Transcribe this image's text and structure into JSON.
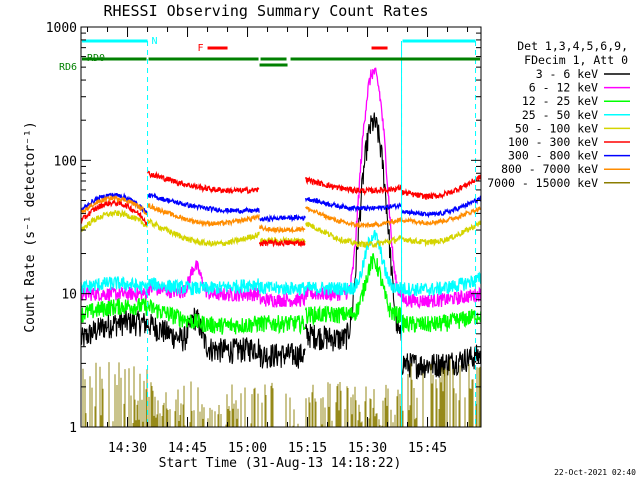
{
  "chart_data": {
    "type": "line",
    "title": "RHESSI Observing Summary Count Rates",
    "xlabel": "Start Time (31-Aug-13 14:18:22)",
    "ylabel": "Count Rate (s⁻¹ detector⁻¹)",
    "yscale": "log",
    "ylim": [
      1,
      1000
    ],
    "xlim": [
      "14:18:22",
      "15:58:22"
    ],
    "xticks": [
      "14:30",
      "14:45",
      "15:00",
      "15:15",
      "15:30",
      "15:45"
    ],
    "yticks": [
      "1",
      "10",
      "100",
      "1000"
    ],
    "grid": false,
    "legend_position": "right",
    "legend_header": [
      "Det 1,3,4,5,6,9,",
      "FDecim 1, Att 0"
    ],
    "series": [
      {
        "name": "3 - 6 keV",
        "color": "#000000"
      },
      {
        "name": "6 - 12 keV",
        "color": "#ff00ff"
      },
      {
        "name": "12 - 25 keV",
        "color": "#00ff00"
      },
      {
        "name": "25 - 50 keV",
        "color": "#00ffff"
      },
      {
        "name": "50 - 100 keV",
        "color": "#d4d400"
      },
      {
        "name": "100 - 300 keV",
        "color": "#ff0000"
      },
      {
        "name": "300 - 800 keV",
        "color": "#0000ff"
      },
      {
        "name": "800 - 7000 keV",
        "color": "#ff8c00"
      },
      {
        "name": "7000 - 15000 keV",
        "color": "#8b7d00"
      }
    ],
    "annotations": {
      "night_label": "N",
      "flare_label": "F",
      "rd0_label": "RD0",
      "rd6_label": "RD6"
    },
    "footer_date": "22-Oct-2021 02:40"
  }
}
